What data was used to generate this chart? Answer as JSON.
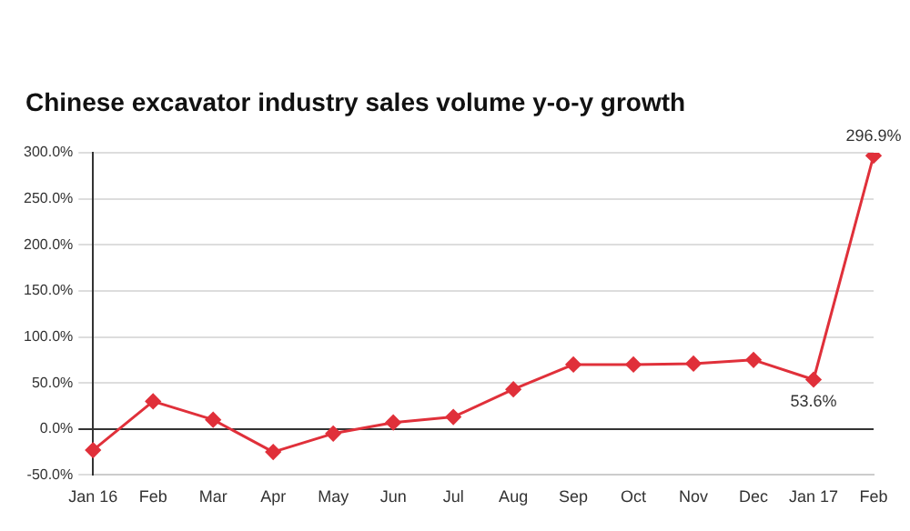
{
  "chart_data": {
    "type": "line",
    "title": "Chinese excavator industry sales volume y-o-y growth",
    "categories": [
      "Jan 16",
      "Feb",
      "Mar",
      "Apr",
      "May",
      "Jun",
      "Jul",
      "Aug",
      "Sep",
      "Oct",
      "Nov",
      "Dec",
      "Jan 17",
      "Feb"
    ],
    "series": [
      {
        "color": "#e0303a",
        "values": [
          -23,
          30,
          10,
          -25,
          -5,
          7,
          13,
          43,
          70,
          70,
          71,
          75,
          53.6,
          296.9
        ],
        "value_labels": [
          null,
          null,
          null,
          null,
          null,
          null,
          null,
          null,
          null,
          null,
          null,
          null,
          "53.6%",
          "296.9%"
        ]
      }
    ],
    "ylim": [
      -50,
      300
    ],
    "yticks": [
      {
        "value": -50,
        "label": "-50.0%"
      },
      {
        "value": 0,
        "label": "0.0%"
      },
      {
        "value": 50,
        "label": "50.0%"
      },
      {
        "value": 100,
        "label": "100.0%"
      },
      {
        "value": 150,
        "label": "150.0%"
      },
      {
        "value": 200,
        "label": "200.0%"
      },
      {
        "value": 250,
        "label": "250.0%"
      },
      {
        "value": 300,
        "label": "300.0%"
      }
    ],
    "grid": "y",
    "marker": "diamond",
    "line_style": "solid",
    "legend": false
  }
}
